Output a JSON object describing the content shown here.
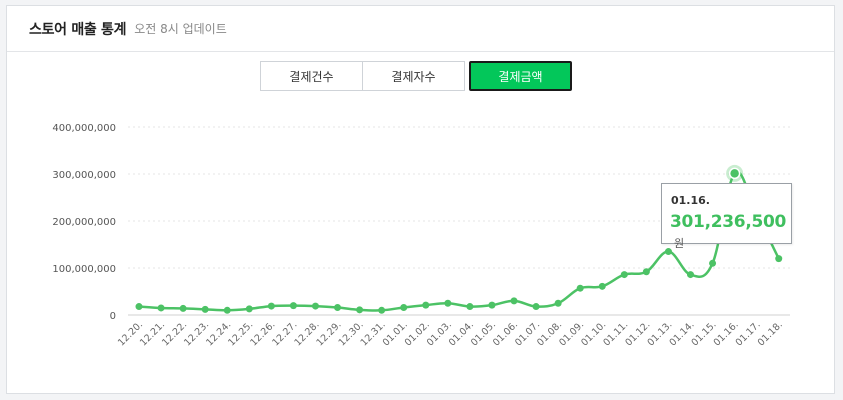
{
  "header": {
    "title": "스토어 매출 통계",
    "subtitle": "오전 8시 업데이트"
  },
  "tabs": [
    {
      "label": "결제건수",
      "active": false
    },
    {
      "label": "결제자수",
      "active": false
    },
    {
      "label": "결제금액",
      "active": true
    }
  ],
  "colors": {
    "line": "#4cc265",
    "accent": "#03c75a",
    "grid": "#e6e6e6"
  },
  "chart_data": {
    "type": "line",
    "categories": [
      "12.20.",
      "12.21.",
      "12.22.",
      "12.23.",
      "12.24.",
      "12.25.",
      "12.26.",
      "12.27.",
      "12.28.",
      "12.29.",
      "12.30.",
      "12.31.",
      "01.01.",
      "01.02.",
      "01.03.",
      "01.04.",
      "01.05.",
      "01.06.",
      "01.07.",
      "01.08.",
      "01.09.",
      "01.10.",
      "01.11.",
      "01.12.",
      "01.13.",
      "01.14.",
      "01.15.",
      "01.16.",
      "01.17.",
      "01.18."
    ],
    "values": [
      18000000,
      15000000,
      14000000,
      12000000,
      10000000,
      13000000,
      19000000,
      20000000,
      19000000,
      16000000,
      11000000,
      10000000,
      16000000,
      21000000,
      25000000,
      18000000,
      21000000,
      30000000,
      18000000,
      25000000,
      57000000,
      61000000,
      86000000,
      92000000,
      135000000,
      86000000,
      110000000,
      301236500,
      215000000,
      120000000
    ],
    "yticks": [
      "400,000,000",
      "300,000,000",
      "200,000,000",
      "100,000,000",
      "0"
    ],
    "ylim": [
      0,
      400000000
    ],
    "grid": true,
    "highlight_index": 27
  },
  "tooltip": {
    "date": "01.16.",
    "value": "301,236,500",
    "unit": "원"
  }
}
